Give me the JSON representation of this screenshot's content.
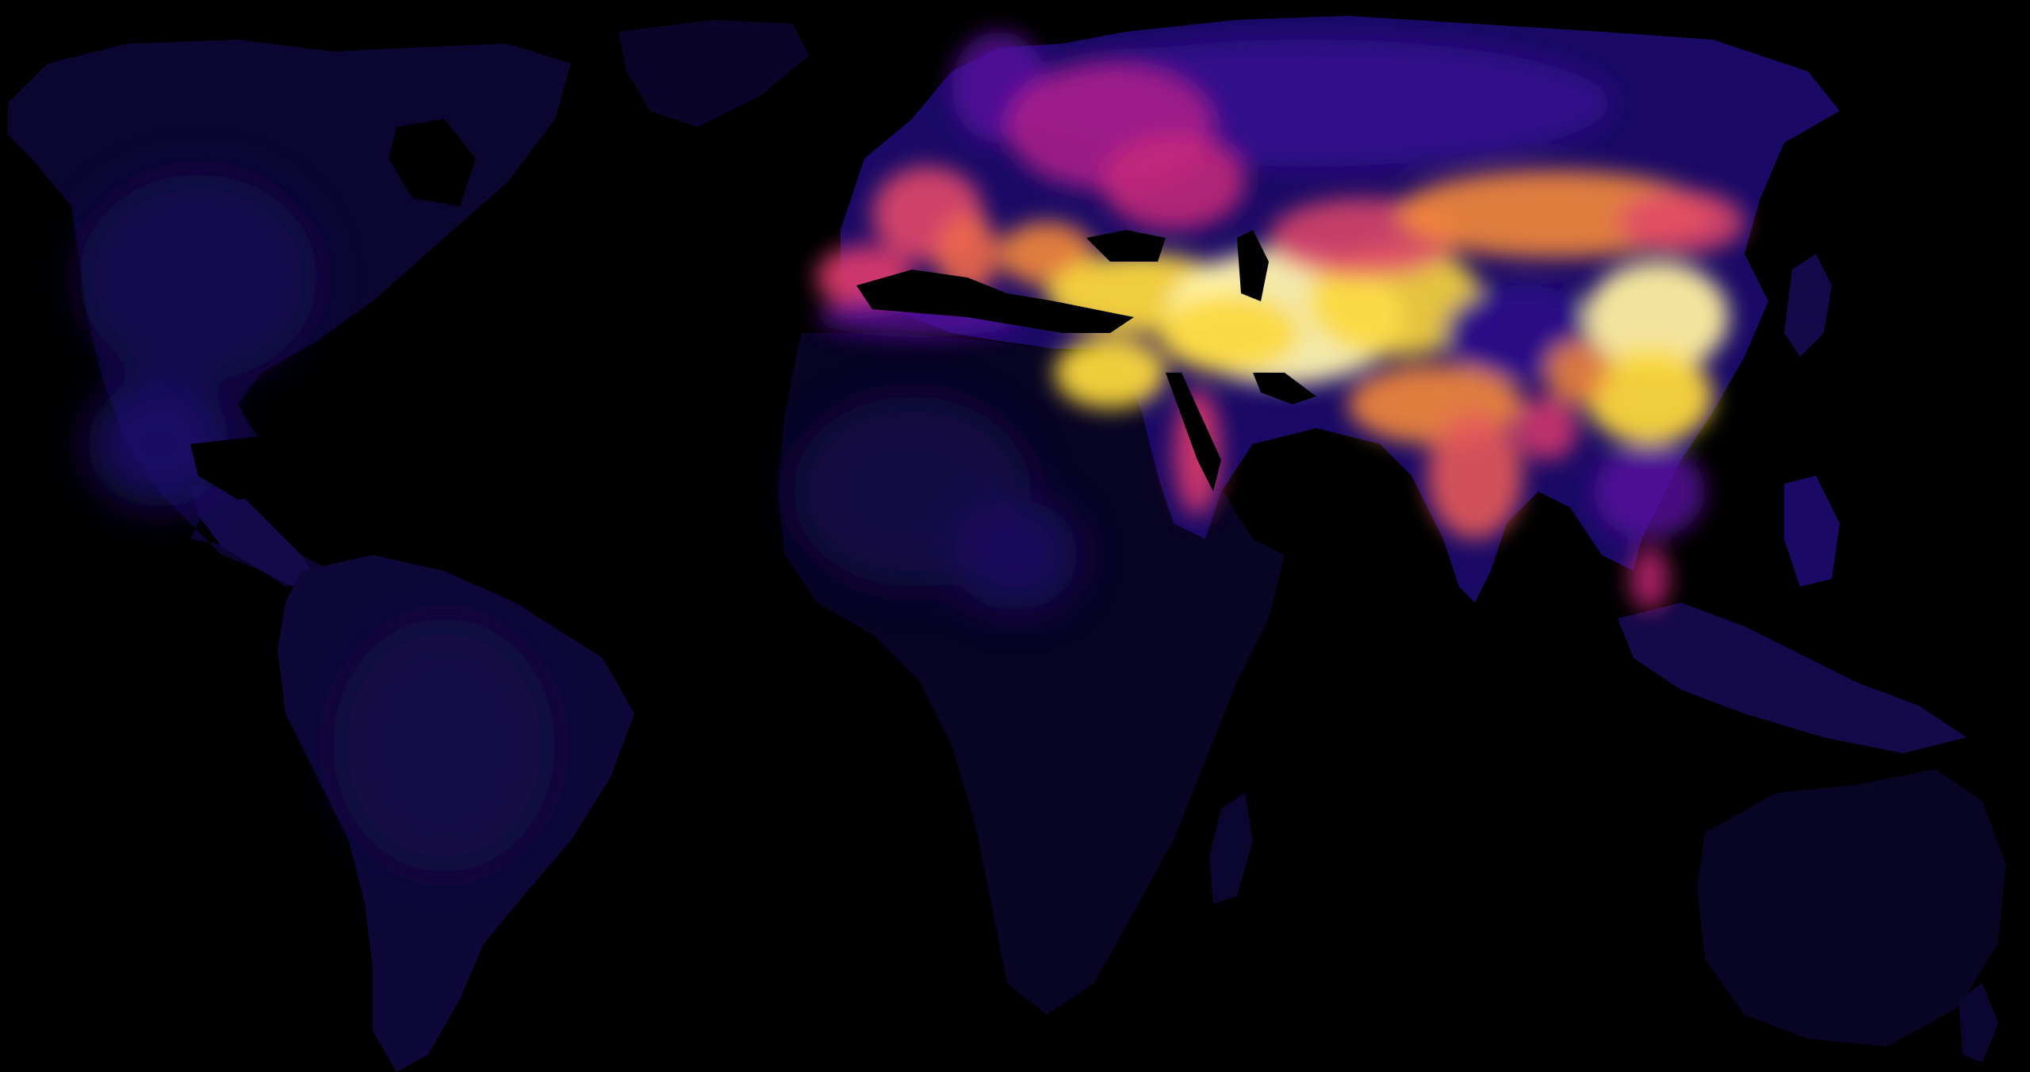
{
  "map": {
    "type": "choropleth-heatmap",
    "projection": "equirectangular-world",
    "colormap": "plasma",
    "colors": {
      "ocean": "#000000",
      "lowest": "#0b0630",
      "low": "#1a0a66",
      "mid_low": "#3c0c9a",
      "mid": "#8e1a9c",
      "mid_high": "#d8386c",
      "high": "#f58a3a",
      "very_high": "#fcd83c",
      "peak": "#fff6b0"
    },
    "regions": [
      {
        "name": "north-america",
        "level": 0.08
      },
      {
        "name": "south-america",
        "level": 0.1
      },
      {
        "name": "africa",
        "level": 0.06
      },
      {
        "name": "australia",
        "level": 0.05
      },
      {
        "name": "northern-russia",
        "level": 0.2
      },
      {
        "name": "scandinavia",
        "level": 0.3
      },
      {
        "name": "western-europe",
        "level": 0.65
      },
      {
        "name": "iberia",
        "level": 0.6
      },
      {
        "name": "north-africa-coast",
        "level": 0.3
      },
      {
        "name": "eastern-europe",
        "level": 0.5
      },
      {
        "name": "anatolia",
        "level": 0.9
      },
      {
        "name": "nile-valley",
        "level": 0.85
      },
      {
        "name": "red-sea-coast",
        "level": 0.6
      },
      {
        "name": "arabia",
        "level": 0.2
      },
      {
        "name": "iran",
        "level": 0.97
      },
      {
        "name": "central-asia",
        "level": 0.7
      },
      {
        "name": "tibet",
        "level": 0.2
      },
      {
        "name": "india",
        "level": 0.7
      },
      {
        "name": "south-china",
        "level": 0.9
      },
      {
        "name": "north-china",
        "level": 0.92
      },
      {
        "name": "mongolia",
        "level": 0.75
      },
      {
        "name": "southeast-asia",
        "level": 0.35
      },
      {
        "name": "maritime-southeast-asia",
        "level": 0.15
      }
    ]
  }
}
